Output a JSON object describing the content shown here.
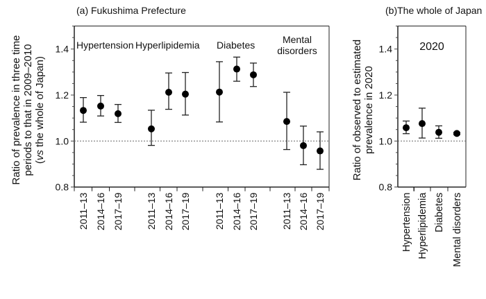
{
  "chart_data": [
    {
      "type": "scatter",
      "title": "(a) Fukushima Prefecture",
      "ylabel_lines": [
        "Ratio of prevalence in three time",
        "periods to that in 2009–2010",
        "(vs the whole of Japan)"
      ],
      "ylim": [
        0.8,
        1.5
      ],
      "yticks": [
        "0.8",
        "1.0",
        "1.2",
        "1.4"
      ],
      "reference_line": 1.0,
      "groups": [
        {
          "name": "Hypertension",
          "periods": [
            "2011–13",
            "2014–16",
            "2017–19"
          ],
          "values": [
            1.133,
            1.152,
            1.119
          ],
          "lower": [
            1.082,
            1.109,
            1.081
          ],
          "upper": [
            1.189,
            1.198,
            1.159
          ]
        },
        {
          "name": "Hyperlipidemia",
          "periods": [
            "2011–13",
            "2014–16",
            "2017–19"
          ],
          "values": [
            1.053,
            1.212,
            1.204
          ],
          "lower": [
            0.981,
            1.138,
            1.113
          ],
          "upper": [
            1.134,
            1.296,
            1.298
          ]
        },
        {
          "name": "Diabetes",
          "periods": [
            "2011–13",
            "2014–16",
            "2017–19"
          ],
          "values": [
            1.213,
            1.313,
            1.288
          ],
          "lower": [
            1.083,
            1.26,
            1.237
          ],
          "upper": [
            1.345,
            1.365,
            1.339
          ]
        },
        {
          "name": "Mental\ndisorders",
          "periods": [
            "2011–13",
            "2014–16",
            "2017–19"
          ],
          "values": [
            1.085,
            0.98,
            0.957
          ],
          "lower": [
            0.963,
            0.897,
            0.877
          ],
          "upper": [
            1.212,
            1.065,
            1.04
          ]
        }
      ]
    },
    {
      "type": "scatter",
      "title": "(b)The whole of Japan",
      "annotation": "2020",
      "ylabel_lines": [
        "Ratio of observed to estimated",
        "prevalence in 2020"
      ],
      "ylim": [
        0.8,
        1.5
      ],
      "yticks": [
        "0.8",
        "1.0",
        "1.2",
        "1.4"
      ],
      "reference_line": 1.0,
      "categories": [
        "Hypertension",
        "Hyperlipidemia",
        "Diabetes",
        "Mental disorders"
      ],
      "values": [
        1.058,
        1.076,
        1.038,
        1.033
      ],
      "lower": [
        1.032,
        1.013,
        1.012,
        1.028
      ],
      "upper": [
        1.087,
        1.143,
        1.066,
        1.038
      ]
    }
  ]
}
